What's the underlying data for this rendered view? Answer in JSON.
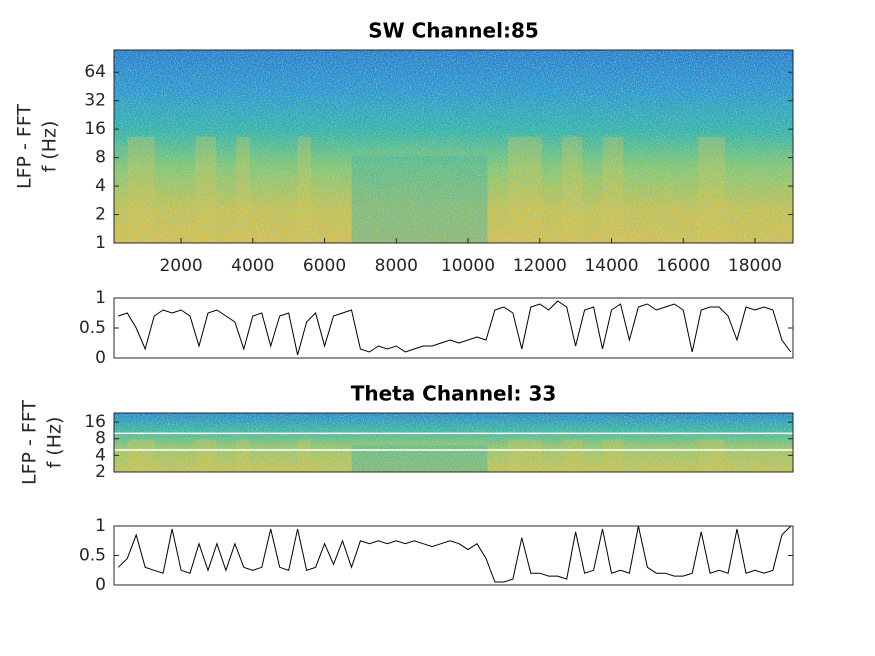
{
  "chart_data": [
    {
      "type": "spectrogram",
      "title": "SW Channel:85",
      "ylabel": [
        "LFP - FFT",
        "f (Hz)"
      ],
      "xlim": [
        130,
        19060
      ],
      "xticks": [
        2000,
        4000,
        6000,
        8000,
        10000,
        12000,
        14000,
        16000,
        18000
      ],
      "ylim": [
        1,
        110
      ],
      "yticks": [
        1,
        2,
        4,
        8,
        16,
        32,
        64
      ],
      "yscale": "log"
    },
    {
      "type": "line",
      "color": "#000000",
      "xlim": [
        130,
        19060
      ],
      "ylim": [
        0,
        1
      ],
      "yticks": [
        0,
        0.5,
        1
      ],
      "x": [
        250,
        500,
        750,
        1000,
        1250,
        1500,
        1750,
        2000,
        2250,
        2500,
        2750,
        3000,
        3250,
        3500,
        3750,
        4000,
        4250,
        4500,
        4750,
        5000,
        5250,
        5500,
        5750,
        6000,
        6250,
        6500,
        6750,
        7000,
        7250,
        7500,
        7750,
        8000,
        8250,
        8500,
        8750,
        9000,
        9250,
        9500,
        9750,
        10000,
        10250,
        10500,
        10750,
        11000,
        11250,
        11500,
        11750,
        12000,
        12250,
        12500,
        12750,
        13000,
        13250,
        13500,
        13750,
        14000,
        14250,
        14500,
        14750,
        15000,
        15250,
        15500,
        15750,
        16000,
        16250,
        16500,
        16750,
        17000,
        17250,
        17500,
        17750,
        18000,
        18250,
        18500,
        18750,
        19000
      ],
      "values": [
        0.7,
        0.75,
        0.5,
        0.15,
        0.7,
        0.8,
        0.75,
        0.8,
        0.7,
        0.2,
        0.75,
        0.8,
        0.7,
        0.6,
        0.15,
        0.7,
        0.75,
        0.2,
        0.7,
        0.75,
        0.05,
        0.6,
        0.75,
        0.2,
        0.7,
        0.75,
        0.8,
        0.15,
        0.1,
        0.2,
        0.15,
        0.2,
        0.1,
        0.15,
        0.2,
        0.2,
        0.25,
        0.3,
        0.25,
        0.3,
        0.35,
        0.3,
        0.8,
        0.85,
        0.75,
        0.15,
        0.85,
        0.9,
        0.8,
        0.95,
        0.85,
        0.2,
        0.8,
        0.85,
        0.15,
        0.8,
        0.9,
        0.3,
        0.85,
        0.9,
        0.8,
        0.85,
        0.9,
        0.8,
        0.1,
        0.8,
        0.85,
        0.85,
        0.7,
        0.3,
        0.85,
        0.8,
        0.85,
        0.8,
        0.3,
        0.1
      ]
    },
    {
      "type": "spectrogram",
      "title": "Theta Channel: 33",
      "ylabel": [
        "LFP - FFT",
        "f (Hz)"
      ],
      "xlim": [
        130,
        19060
      ],
      "ylim": [
        2,
        23.4
      ],
      "yticks": [
        2,
        4,
        8,
        16
      ],
      "yscale": "log",
      "hlines": [
        5,
        10
      ],
      "hline_color": "#ffffff"
    },
    {
      "type": "line",
      "color": "#000000",
      "xlim": [
        130,
        19060
      ],
      "ylim": [
        0,
        1
      ],
      "yticks": [
        0,
        0.5,
        1
      ],
      "x": [
        250,
        500,
        750,
        1000,
        1250,
        1500,
        1750,
        2000,
        2250,
        2500,
        2750,
        3000,
        3250,
        3500,
        3750,
        4000,
        4250,
        4500,
        4750,
        5000,
        5250,
        5500,
        5750,
        6000,
        6250,
        6500,
        6750,
        7000,
        7250,
        7500,
        7750,
        8000,
        8250,
        8500,
        8750,
        9000,
        9250,
        9500,
        9750,
        10000,
        10250,
        10500,
        10750,
        11000,
        11250,
        11500,
        11750,
        12000,
        12250,
        12500,
        12750,
        13000,
        13250,
        13500,
        13750,
        14000,
        14250,
        14500,
        14750,
        15000,
        15250,
        15500,
        15750,
        16000,
        16250,
        16500,
        16750,
        17000,
        17250,
        17500,
        17750,
        18000,
        18250,
        18500,
        18750,
        19000
      ],
      "values": [
        0.3,
        0.45,
        0.85,
        0.3,
        0.25,
        0.2,
        0.95,
        0.25,
        0.2,
        0.7,
        0.25,
        0.7,
        0.25,
        0.7,
        0.3,
        0.25,
        0.3,
        0.95,
        0.3,
        0.25,
        0.95,
        0.25,
        0.3,
        0.7,
        0.35,
        0.75,
        0.3,
        0.75,
        0.7,
        0.75,
        0.7,
        0.75,
        0.7,
        0.75,
        0.7,
        0.65,
        0.7,
        0.75,
        0.7,
        0.6,
        0.7,
        0.45,
        0.05,
        0.05,
        0.1,
        0.8,
        0.2,
        0.2,
        0.15,
        0.15,
        0.1,
        0.9,
        0.2,
        0.25,
        0.95,
        0.2,
        0.25,
        0.2,
        1.0,
        0.3,
        0.2,
        0.2,
        0.15,
        0.15,
        0.2,
        0.9,
        0.2,
        0.25,
        0.2,
        0.95,
        0.2,
        0.25,
        0.2,
        0.25,
        0.85,
        1.0
      ]
    }
  ]
}
